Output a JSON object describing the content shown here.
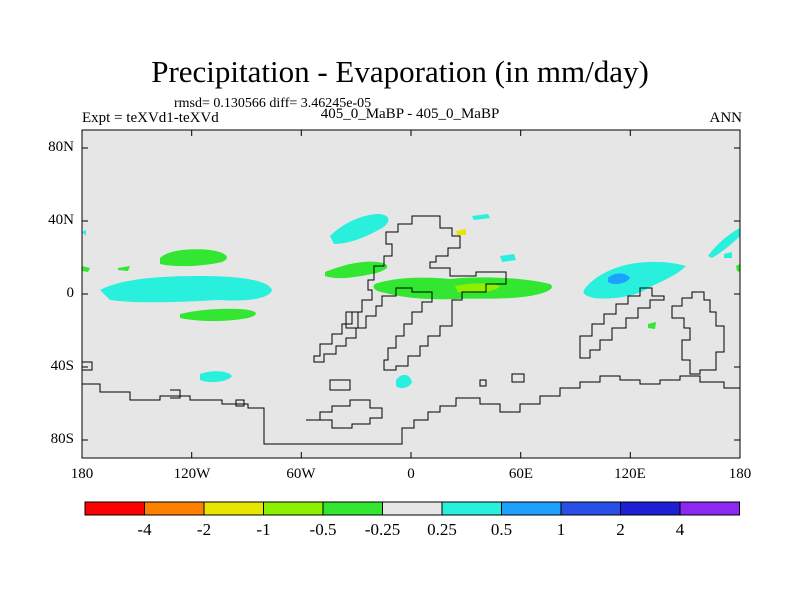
{
  "title": "Precipitation - Evaporation (in mm/day)",
  "stats": "rmsd= 0.130566 diff= 3.46245e-05",
  "experiment": "Expt = teXVd1-teXVd",
  "case_label": "405_0_MaBP - 405_0_MaBP",
  "season": "ANN",
  "lat_ticks": [
    "80N",
    "40N",
    "0",
    "40S",
    "80S"
  ],
  "lon_ticks": [
    "180",
    "120W",
    "60W",
    "0",
    "60E",
    "120E",
    "180"
  ],
  "colorbar": {
    "colors": [
      "#ff0000",
      "#ff8000",
      "#e6e600",
      "#8cf000",
      "#32e632",
      "#e6e6e6",
      "#28f0dc",
      "#1ea0ff",
      "#2850e6",
      "#1e1ed2",
      "#8c28f0"
    ],
    "labels": [
      "-4",
      "-2",
      "-1",
      "-0.5",
      "-0.25",
      "0.25",
      "0.5",
      "1",
      "2",
      "4"
    ]
  },
  "colors": {
    "background": "#e6e6e6",
    "green": "#32e632",
    "cyan": "#28f0dc",
    "lightgreen": "#8cf000",
    "blue": "#1ea0ff",
    "yellow": "#e6e600"
  }
}
